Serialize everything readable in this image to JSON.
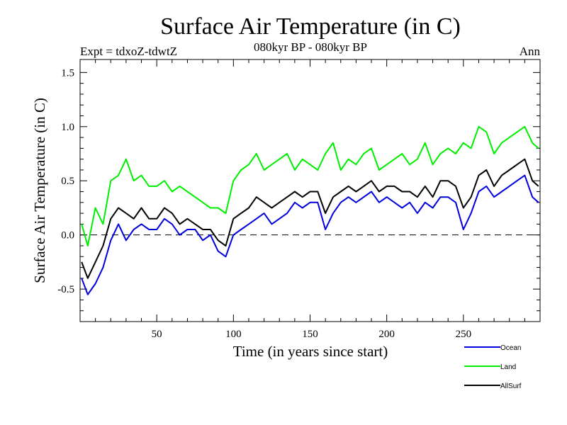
{
  "chart_data": {
    "type": "line",
    "title": "Surface Air Temperature (in C)",
    "subtitle": "080kyr BP - 080kyr BP",
    "experiment_label": "Expt = tdxoZ-tdwtZ",
    "period_label": "Ann",
    "xlabel": "Time (in years since start)",
    "ylabel": "Surface Air Temperature (in C)",
    "xlim": [
      0,
      300
    ],
    "ylim": [
      -0.8,
      1.62
    ],
    "x_ticks": [
      50,
      100,
      150,
      200,
      250
    ],
    "x_tick_labels": [
      "50",
      "100",
      "150",
      "200",
      "250"
    ],
    "y_ticks": [
      -0.5,
      0.0,
      0.5,
      1.0,
      1.5
    ],
    "y_tick_labels": [
      "-0.5",
      "0.0",
      "0.5",
      "1.0",
      "1.5"
    ],
    "zero_line": "dashed",
    "grid": false,
    "legend_position": "bottom-right, below plot",
    "series": [
      {
        "name": "Ocean",
        "color": "#0000dd",
        "x": [
          1,
          5,
          10,
          15,
          20,
          25,
          30,
          35,
          40,
          45,
          50,
          55,
          60,
          65,
          70,
          75,
          80,
          85,
          90,
          95,
          100,
          105,
          110,
          115,
          120,
          125,
          130,
          135,
          140,
          145,
          150,
          155,
          160,
          165,
          170,
          175,
          180,
          185,
          190,
          195,
          200,
          205,
          210,
          215,
          220,
          225,
          230,
          235,
          240,
          245,
          250,
          255,
          260,
          265,
          270,
          275,
          280,
          285,
          290,
          295,
          299
        ],
        "values": [
          -0.4,
          -0.55,
          -0.45,
          -0.3,
          -0.05,
          0.1,
          -0.05,
          0.05,
          0.1,
          0.05,
          0.05,
          0.15,
          0.1,
          0.0,
          0.05,
          0.05,
          -0.05,
          0.0,
          -0.15,
          -0.2,
          0.0,
          0.05,
          0.1,
          0.15,
          0.2,
          0.1,
          0.15,
          0.2,
          0.3,
          0.25,
          0.3,
          0.3,
          0.05,
          0.2,
          0.3,
          0.35,
          0.3,
          0.35,
          0.4,
          0.3,
          0.35,
          0.3,
          0.25,
          0.3,
          0.2,
          0.3,
          0.25,
          0.35,
          0.35,
          0.3,
          0.05,
          0.2,
          0.4,
          0.45,
          0.35,
          0.4,
          0.45,
          0.5,
          0.55,
          0.35,
          0.3
        ]
      },
      {
        "name": "Land",
        "color": "#00ee00",
        "x": [
          1,
          5,
          10,
          15,
          20,
          25,
          30,
          35,
          40,
          45,
          50,
          55,
          60,
          65,
          70,
          75,
          80,
          85,
          90,
          95,
          100,
          105,
          110,
          115,
          120,
          125,
          130,
          135,
          140,
          145,
          150,
          155,
          160,
          165,
          170,
          175,
          180,
          185,
          190,
          195,
          200,
          205,
          210,
          215,
          220,
          225,
          230,
          235,
          240,
          245,
          250,
          255,
          260,
          265,
          270,
          275,
          280,
          285,
          290,
          295,
          299
        ],
        "values": [
          0.1,
          -0.1,
          0.25,
          0.1,
          0.5,
          0.55,
          0.7,
          0.5,
          0.55,
          0.45,
          0.45,
          0.5,
          0.4,
          0.45,
          0.4,
          0.35,
          0.3,
          0.25,
          0.25,
          0.2,
          0.5,
          0.6,
          0.65,
          0.75,
          0.6,
          0.65,
          0.7,
          0.75,
          0.6,
          0.7,
          0.65,
          0.6,
          0.75,
          0.85,
          0.6,
          0.7,
          0.65,
          0.75,
          0.8,
          0.6,
          0.65,
          0.7,
          0.75,
          0.65,
          0.7,
          0.85,
          0.65,
          0.75,
          0.8,
          0.75,
          0.85,
          0.8,
          1.0,
          0.95,
          0.75,
          0.85,
          0.9,
          0.95,
          1.0,
          0.85,
          0.8
        ]
      },
      {
        "name": "AllSurf",
        "color": "#000000",
        "x": [
          1,
          5,
          10,
          15,
          20,
          25,
          30,
          35,
          40,
          45,
          50,
          55,
          60,
          65,
          70,
          75,
          80,
          85,
          90,
          95,
          100,
          105,
          110,
          115,
          120,
          125,
          130,
          135,
          140,
          145,
          150,
          155,
          160,
          165,
          170,
          175,
          180,
          185,
          190,
          195,
          200,
          205,
          210,
          215,
          220,
          225,
          230,
          235,
          240,
          245,
          250,
          255,
          260,
          265,
          270,
          275,
          280,
          285,
          290,
          295,
          299
        ],
        "values": [
          -0.25,
          -0.4,
          -0.25,
          -0.1,
          0.15,
          0.25,
          0.2,
          0.15,
          0.25,
          0.15,
          0.15,
          0.25,
          0.2,
          0.1,
          0.15,
          0.1,
          0.05,
          0.05,
          -0.05,
          -0.1,
          0.15,
          0.2,
          0.25,
          0.35,
          0.3,
          0.25,
          0.3,
          0.35,
          0.4,
          0.35,
          0.4,
          0.4,
          0.2,
          0.35,
          0.4,
          0.45,
          0.4,
          0.45,
          0.5,
          0.4,
          0.45,
          0.45,
          0.4,
          0.4,
          0.35,
          0.45,
          0.35,
          0.5,
          0.5,
          0.45,
          0.25,
          0.35,
          0.55,
          0.6,
          0.45,
          0.55,
          0.6,
          0.65,
          0.7,
          0.5,
          0.45
        ]
      }
    ]
  }
}
